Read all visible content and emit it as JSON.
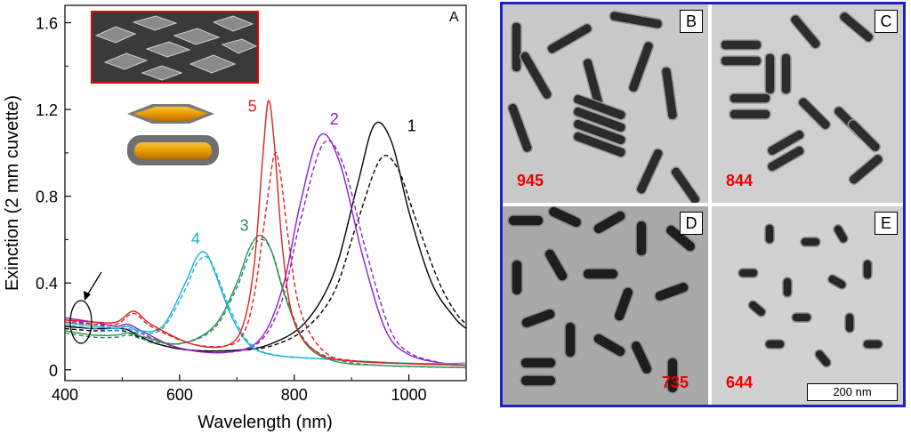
{
  "chart_data": {
    "type": "line",
    "panel_label": "A",
    "xlabel": "Wavelength (nm)",
    "ylabel": "Exinction (2 mm cuvette)",
    "xlim": [
      400,
      1100
    ],
    "ylim": [
      -0.05,
      1.68
    ],
    "xticks": [
      400,
      600,
      800,
      1000
    ],
    "yticks": [
      0,
      0.4,
      0.8,
      1.2,
      1.6
    ],
    "ytick_labels": [
      "0",
      "0.4",
      "0.8",
      "1.2",
      "1.6"
    ],
    "series": [
      {
        "name": "1",
        "color": "#000000",
        "dashed": false,
        "x": [
          400,
          450,
          500,
          520,
          560,
          620,
          700,
          760,
          820,
          870,
          910,
          940,
          970,
          1000,
          1040,
          1080,
          1100
        ],
        "y": [
          0.2,
          0.19,
          0.19,
          0.17,
          0.12,
          0.09,
          0.09,
          0.12,
          0.22,
          0.45,
          0.85,
          1.13,
          1.05,
          0.73,
          0.4,
          0.24,
          0.19
        ]
      },
      {
        "name": "1",
        "color": "#000000",
        "dashed": true,
        "x": [
          400,
          450,
          500,
          520,
          560,
          620,
          700,
          760,
          820,
          870,
          910,
          950,
          980,
          1010,
          1050,
          1080,
          1100
        ],
        "y": [
          0.19,
          0.18,
          0.18,
          0.16,
          0.12,
          0.09,
          0.09,
          0.11,
          0.19,
          0.36,
          0.68,
          0.97,
          0.93,
          0.71,
          0.42,
          0.27,
          0.21
        ]
      },
      {
        "name": "2",
        "color": "#8b1fc8",
        "dashed": false,
        "x": [
          400,
          450,
          490,
          510,
          540,
          600,
          680,
          740,
          780,
          810,
          845,
          880,
          920,
          960,
          1000,
          1060,
          1100
        ],
        "y": [
          0.24,
          0.22,
          0.2,
          0.21,
          0.17,
          0.1,
          0.08,
          0.14,
          0.38,
          0.76,
          1.08,
          0.95,
          0.52,
          0.18,
          0.07,
          0.03,
          0.02
        ]
      },
      {
        "name": "2",
        "color": "#8b1fc8",
        "dashed": true,
        "x": [
          400,
          450,
          490,
          510,
          540,
          600,
          680,
          740,
          780,
          810,
          850,
          885,
          925,
          965,
          1000,
          1060,
          1100
        ],
        "y": [
          0.23,
          0.21,
          0.19,
          0.2,
          0.16,
          0.1,
          0.08,
          0.13,
          0.33,
          0.68,
          1.04,
          0.95,
          0.55,
          0.2,
          0.08,
          0.03,
          0.02
        ]
      },
      {
        "name": "3",
        "color": "#2e8b57",
        "dashed": false,
        "x": [
          400,
          450,
          490,
          510,
          540,
          600,
          660,
          700,
          720,
          740,
          760,
          785,
          820,
          870,
          950,
          1100
        ],
        "y": [
          0.18,
          0.16,
          0.16,
          0.17,
          0.15,
          0.12,
          0.2,
          0.4,
          0.55,
          0.62,
          0.55,
          0.33,
          0.12,
          0.04,
          0.02,
          0.01
        ]
      },
      {
        "name": "3",
        "color": "#2e8b57",
        "dashed": true,
        "x": [
          400,
          450,
          490,
          510,
          540,
          600,
          660,
          700,
          720,
          740,
          760,
          785,
          820,
          870,
          950,
          1100
        ],
        "y": [
          0.17,
          0.15,
          0.15,
          0.16,
          0.14,
          0.12,
          0.19,
          0.38,
          0.52,
          0.6,
          0.55,
          0.34,
          0.13,
          0.05,
          0.02,
          0.01
        ]
      },
      {
        "name": "4",
        "color": "#1ab0d8",
        "dashed": false,
        "x": [
          400,
          450,
          490,
          510,
          530,
          570,
          610,
          630,
          645,
          660,
          690,
          720,
          760,
          850,
          1000,
          1100
        ],
        "y": [
          0.22,
          0.2,
          0.19,
          0.2,
          0.18,
          0.2,
          0.4,
          0.52,
          0.54,
          0.46,
          0.25,
          0.12,
          0.07,
          0.05,
          0.03,
          0.03
        ]
      },
      {
        "name": "4",
        "color": "#1ab0d8",
        "dashed": true,
        "x": [
          400,
          450,
          490,
          510,
          530,
          570,
          610,
          630,
          648,
          663,
          693,
          723,
          763,
          850,
          1000,
          1100
        ],
        "y": [
          0.21,
          0.19,
          0.18,
          0.19,
          0.17,
          0.19,
          0.37,
          0.49,
          0.52,
          0.45,
          0.25,
          0.12,
          0.07,
          0.05,
          0.03,
          0.03
        ]
      },
      {
        "name": "5",
        "color": "#e02020",
        "dashed": false,
        "x": [
          400,
          450,
          490,
          520,
          550,
          620,
          680,
          710,
          730,
          745,
          755,
          765,
          780,
          800,
          840,
          900,
          1100
        ],
        "y": [
          0.23,
          0.22,
          0.22,
          0.27,
          0.21,
          0.12,
          0.11,
          0.2,
          0.48,
          0.98,
          1.24,
          1.05,
          0.55,
          0.22,
          0.08,
          0.04,
          0.02
        ]
      },
      {
        "name": "5",
        "color": "#e02020",
        "dashed": true,
        "x": [
          400,
          450,
          490,
          520,
          550,
          620,
          680,
          710,
          730,
          750,
          765,
          775,
          790,
          810,
          850,
          910,
          1100
        ],
        "y": [
          0.22,
          0.21,
          0.21,
          0.26,
          0.2,
          0.12,
          0.11,
          0.16,
          0.34,
          0.72,
          0.99,
          0.92,
          0.6,
          0.28,
          0.09,
          0.04,
          0.02
        ]
      }
    ],
    "curve_labels": [
      {
        "text": "1",
        "x": 1005,
        "y": 1.1,
        "color": "#000000"
      },
      {
        "text": "2",
        "x": 870,
        "y": 1.13,
        "color": "#8b1fc8"
      },
      {
        "text": "3",
        "x": 713,
        "y": 0.64,
        "color": "#2e8b57"
      },
      {
        "text": "4",
        "x": 628,
        "y": 0.58,
        "color": "#1ab0d8"
      },
      {
        "text": "5",
        "x": 727,
        "y": 1.19,
        "color": "#e02020"
      }
    ]
  },
  "tem_panels": [
    {
      "letter": "B",
      "number": "945"
    },
    {
      "letter": "C",
      "number": "844"
    },
    {
      "letter": "D",
      "number": "735"
    },
    {
      "letter": "E",
      "number": "644"
    }
  ],
  "scale_bar": "200 nm"
}
